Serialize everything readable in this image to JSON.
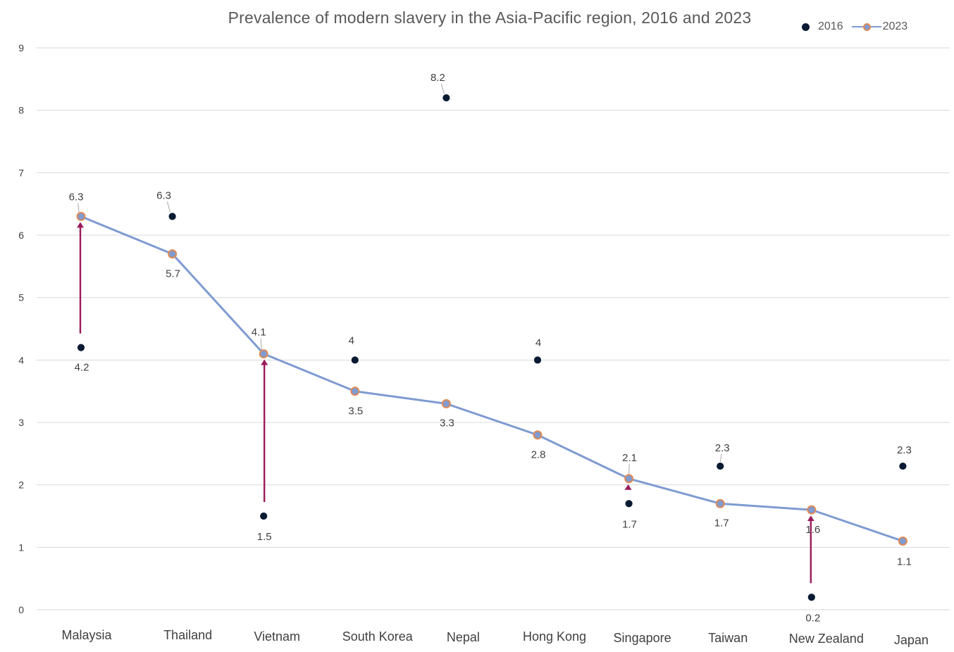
{
  "chart_data": {
    "type": "line",
    "title": "Prevalence of modern slavery in the Asia-Pacific region, 2016 and 2023",
    "xlabel": "",
    "ylabel": "",
    "categories": [
      "Malaysia",
      "Thailand",
      "Vietnam",
      "South Korea",
      "Nepal",
      "Hong Kong",
      "Singapore",
      "Taiwan",
      "New Zealand",
      "Japan"
    ],
    "ylim": [
      0,
      9
    ],
    "yticks": [
      "0",
      "1",
      "2",
      "3",
      "4",
      "5",
      "6",
      "7",
      "8",
      "9"
    ],
    "grid": "horizontal",
    "legend_position": "top-right",
    "series": [
      {
        "name": "2016",
        "style": "markers",
        "color": "#0a1a33",
        "values": [
          4.2,
          6.3,
          1.5,
          4,
          8.2,
          4,
          1.7,
          2.3,
          0.2,
          2.3
        ],
        "labels": [
          "4.2",
          "6.3",
          "1.5",
          "4",
          "8.2",
          "4",
          "1.7",
          "2.3",
          "0.2",
          "2.3"
        ]
      },
      {
        "name": "2023",
        "style": "line-markers",
        "color": "#7f9bd1",
        "marker_edge": "#e08a55",
        "values": [
          6.3,
          5.7,
          4.1,
          3.5,
          3.3,
          2.8,
          2.1,
          1.7,
          1.6,
          1.1
        ],
        "labels": [
          "6.3",
          "5.7",
          "4.1",
          "3.5",
          "3.3",
          "2.8",
          "2.1",
          "1.7",
          "1.6",
          "1.1"
        ]
      }
    ],
    "increase_arrows": {
      "color": "#9b1b5a",
      "categories": [
        "Malaysia",
        "Vietnam",
        "Singapore",
        "New Zealand"
      ]
    }
  }
}
